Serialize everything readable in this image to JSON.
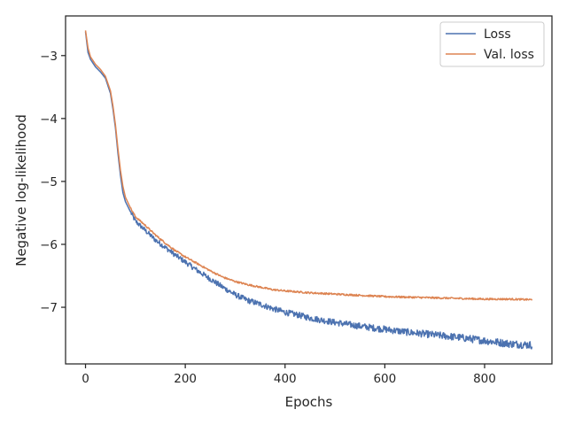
{
  "chart_data": {
    "type": "line",
    "title": "",
    "xlabel": "Epochs",
    "ylabel": "Negative log-likelihood",
    "xlim": [
      -40,
      935
    ],
    "ylim": [
      -7.9,
      -2.37
    ],
    "xticks": [
      0,
      200,
      400,
      600,
      800
    ],
    "yticks": [
      -3,
      -4,
      -5,
      -6,
      -7
    ],
    "xtick_labels": [
      "0",
      "200",
      "400",
      "600",
      "800"
    ],
    "ytick_labels": [
      "−3",
      "−4",
      "−5",
      "−6",
      "−7"
    ],
    "grid": false,
    "legend_position": "top-right",
    "x_max": 895,
    "series": [
      {
        "name": "Loss",
        "color": "#4c72b0",
        "noise": 0.035,
        "points": [
          [
            0,
            -2.62
          ],
          [
            5,
            -2.95
          ],
          [
            10,
            -3.06
          ],
          [
            20,
            -3.18
          ],
          [
            30,
            -3.26
          ],
          [
            40,
            -3.36
          ],
          [
            50,
            -3.6
          ],
          [
            55,
            -3.85
          ],
          [
            60,
            -4.15
          ],
          [
            65,
            -4.55
          ],
          [
            70,
            -4.9
          ],
          [
            75,
            -5.18
          ],
          [
            80,
            -5.32
          ],
          [
            90,
            -5.48
          ],
          [
            100,
            -5.63
          ],
          [
            120,
            -5.78
          ],
          [
            140,
            -5.93
          ],
          [
            160,
            -6.05
          ],
          [
            180,
            -6.17
          ],
          [
            200,
            -6.28
          ],
          [
            225,
            -6.42
          ],
          [
            250,
            -6.55
          ],
          [
            275,
            -6.68
          ],
          [
            300,
            -6.8
          ],
          [
            325,
            -6.89
          ],
          [
            350,
            -6.95
          ],
          [
            375,
            -7.02
          ],
          [
            400,
            -7.08
          ],
          [
            425,
            -7.12
          ],
          [
            450,
            -7.17
          ],
          [
            500,
            -7.24
          ],
          [
            550,
            -7.3
          ],
          [
            600,
            -7.35
          ],
          [
            650,
            -7.4
          ],
          [
            700,
            -7.44
          ],
          [
            750,
            -7.48
          ],
          [
            800,
            -7.53
          ],
          [
            850,
            -7.58
          ],
          [
            895,
            -7.6
          ]
        ]
      },
      {
        "name": "Val. loss",
        "color": "#dd8452",
        "noise": 0.014,
        "points": [
          [
            0,
            -2.6
          ],
          [
            5,
            -2.88
          ],
          [
            10,
            -3.02
          ],
          [
            20,
            -3.14
          ],
          [
            30,
            -3.22
          ],
          [
            40,
            -3.33
          ],
          [
            50,
            -3.56
          ],
          [
            55,
            -3.8
          ],
          [
            60,
            -4.1
          ],
          [
            65,
            -4.48
          ],
          [
            70,
            -4.82
          ],
          [
            75,
            -5.08
          ],
          [
            80,
            -5.25
          ],
          [
            90,
            -5.42
          ],
          [
            100,
            -5.56
          ],
          [
            120,
            -5.7
          ],
          [
            140,
            -5.85
          ],
          [
            160,
            -5.98
          ],
          [
            180,
            -6.1
          ],
          [
            200,
            -6.2
          ],
          [
            225,
            -6.31
          ],
          [
            250,
            -6.42
          ],
          [
            275,
            -6.52
          ],
          [
            300,
            -6.59
          ],
          [
            325,
            -6.64
          ],
          [
            350,
            -6.68
          ],
          [
            375,
            -6.72
          ],
          [
            400,
            -6.74
          ],
          [
            450,
            -6.77
          ],
          [
            500,
            -6.79
          ],
          [
            550,
            -6.81
          ],
          [
            600,
            -6.83
          ],
          [
            650,
            -6.84
          ],
          [
            700,
            -6.85
          ],
          [
            750,
            -6.86
          ],
          [
            800,
            -6.87
          ],
          [
            850,
            -6.87
          ],
          [
            895,
            -6.88
          ]
        ]
      }
    ]
  }
}
